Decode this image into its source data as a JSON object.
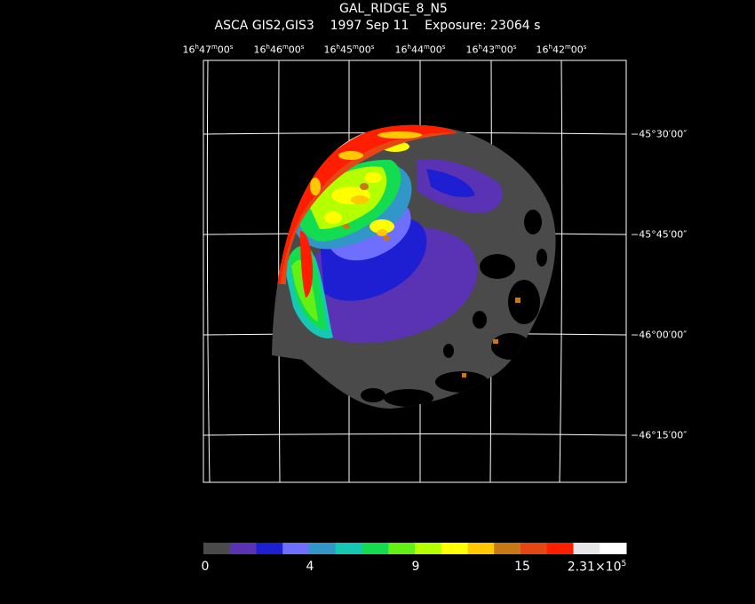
{
  "header": {
    "line1_target": "GAL_RIDGE_8_N5",
    "line2_instrument": "ASCA GIS2,GIS3",
    "line2_date": "1997 Sep 11",
    "line2_exposure": "Exposure: 23064 s"
  },
  "axes": {
    "ra_ticks": [
      {
        "h": "16",
        "m": "47",
        "s": "00"
      },
      {
        "h": "16",
        "m": "46",
        "s": "00"
      },
      {
        "h": "16",
        "m": "45",
        "s": "00"
      },
      {
        "h": "16",
        "m": "44",
        "s": "00"
      },
      {
        "h": "16",
        "m": "43",
        "s": "00"
      },
      {
        "h": "16",
        "m": "42",
        "s": "00"
      }
    ],
    "dec_ticks": [
      "−45°30′00″",
      "−45°45′00″",
      "−46°00′00″",
      "−46°15′00″"
    ],
    "grid": true
  },
  "colorbar": {
    "tick_labels": [
      "0",
      "4",
      "9",
      "15",
      "2.31×10"
    ],
    "max_exponent": "5",
    "colors": [
      "#4a4a4a",
      "#5a32b4",
      "#1e1ed2",
      "#6e6eff",
      "#3296c8",
      "#14c8b4",
      "#14dc50",
      "#64f014",
      "#b4ff00",
      "#ffff00",
      "#ffc800",
      "#c87814",
      "#e64614",
      "#ff1e00",
      "#e6e6e6",
      "#ffffff"
    ]
  },
  "image": {
    "description_colors": {
      "background": "#000000",
      "grid": "#ffffff"
    }
  }
}
